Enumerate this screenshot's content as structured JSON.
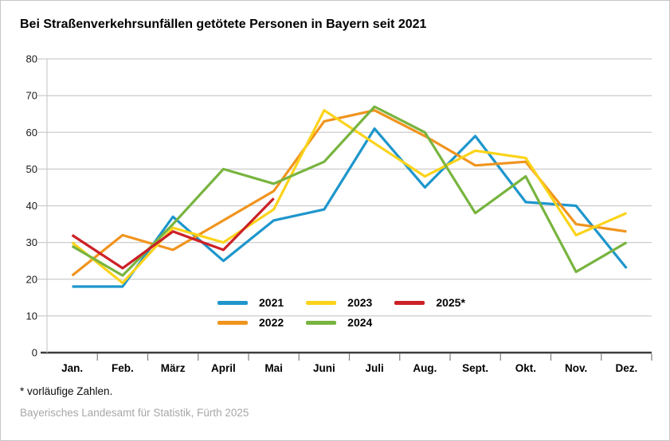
{
  "title": "Bei Straßenverkehrsunfällen getötete Personen in Bayern seit 2021",
  "footnote": "* vorläufige Zahlen.",
  "source": "Bayerisches Landesamt für Statistik, Fürth 2025",
  "colors": {
    "grid": "#cccccc",
    "axis": "#3d3d3d",
    "tick": "#7d7d7d",
    "y_label": "#1a1a1a",
    "month_label": "#000000",
    "plot_left_border": "#cccccc"
  },
  "chart_data": {
    "type": "line",
    "title": "Bei Straßenverkehrsunfällen getötete Personen in Bayern seit 2021",
    "categories": [
      "Jan.",
      "Feb.",
      "März",
      "April",
      "Mai",
      "Juni",
      "Juli",
      "Aug.",
      "Sept.",
      "Okt.",
      "Nov.",
      "Dez."
    ],
    "series": [
      {
        "name": "2021",
        "color": "#1e96cc",
        "values": [
          18,
          18,
          37,
          25,
          36,
          39,
          61,
          45,
          59,
          41,
          40,
          23
        ]
      },
      {
        "name": "2022",
        "color": "#f0941e",
        "values": [
          21,
          32,
          28,
          36,
          44,
          63,
          66,
          59,
          51,
          52,
          35,
          33
        ]
      },
      {
        "name": "2023",
        "color": "#fcd31a",
        "values": [
          30,
          19,
          34,
          30,
          39,
          66,
          57,
          48,
          55,
          53,
          32,
          38
        ]
      },
      {
        "name": "2024",
        "color": "#78b43f",
        "values": [
          29,
          21,
          35,
          50,
          46,
          52,
          67,
          60,
          38,
          48,
          22,
          30
        ]
      },
      {
        "name": "2025*",
        "color": "#cc2026",
        "values": [
          32,
          23,
          33,
          28,
          42,
          null,
          null,
          null,
          null,
          null,
          null,
          null
        ]
      }
    ],
    "xlabel": "",
    "ylabel": "",
    "ylim": [
      0,
      80
    ],
    "ytick_step": 10,
    "grid": true,
    "legend_position": "inside-bottom-center",
    "legend_columns": [
      [
        "2021",
        "2022"
      ],
      [
        "2023",
        "2024"
      ],
      [
        "2025*"
      ]
    ]
  }
}
